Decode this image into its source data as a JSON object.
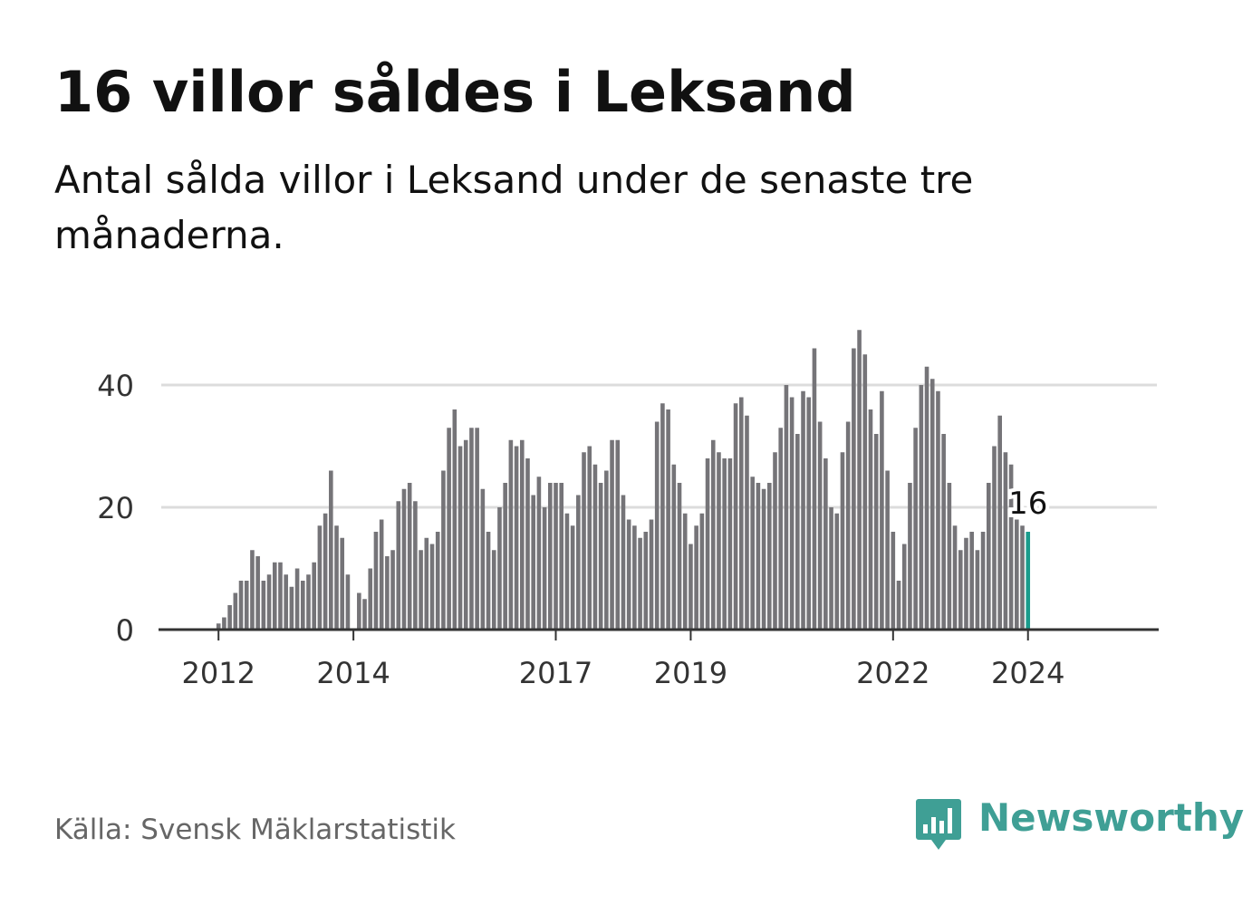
{
  "header": {
    "title": "16 villor såldes i Leksand",
    "subtitle": "Antal sålda villor i Leksand under de senaste tre månaderna."
  },
  "footer": {
    "source": "Källa: Svensk Mäklarstatistik",
    "brand": "Newsworthy",
    "brand_icon": "bar-chart-speech-bubble-icon"
  },
  "colors": {
    "bar": "#757478",
    "highlight": "#1a9b8c",
    "grid": "#dcdcdc",
    "axis": "#333333",
    "brand": "#3f9f95"
  },
  "chart_data": {
    "type": "bar",
    "title": "16 villor såldes i Leksand",
    "subtitle": "Antal sålda villor i Leksand under de senaste tre månaderna.",
    "xlabel": "",
    "ylabel": "",
    "ylim": [
      0,
      50
    ],
    "y_ticks": [
      0,
      20,
      40
    ],
    "x_tick_labels": [
      "2012",
      "2014",
      "2017",
      "2019",
      "2022",
      "2024"
    ],
    "first_period": "2011-11",
    "frequency": "monthly (rolling three-month count)",
    "highlight_label": "16",
    "values": [
      0,
      0,
      1,
      2,
      4,
      6,
      8,
      8,
      13,
      12,
      8,
      9,
      11,
      11,
      9,
      7,
      10,
      8,
      9,
      11,
      17,
      19,
      26,
      17,
      15,
      9,
      0,
      6,
      5,
      10,
      16,
      18,
      12,
      13,
      21,
      23,
      24,
      21,
      13,
      15,
      14,
      16,
      26,
      33,
      36,
      30,
      31,
      33,
      33,
      23,
      16,
      13,
      20,
      24,
      31,
      30,
      31,
      28,
      22,
      25,
      20,
      24,
      24,
      24,
      19,
      17,
      22,
      29,
      30,
      27,
      24,
      26,
      31,
      31,
      22,
      18,
      17,
      15,
      16,
      18,
      34,
      37,
      36,
      27,
      24,
      19,
      14,
      17,
      19,
      28,
      31,
      29,
      28,
      28,
      37,
      38,
      35,
      25,
      24,
      23,
      24,
      29,
      33,
      40,
      38,
      32,
      39,
      38,
      46,
      34,
      28,
      20,
      19,
      29,
      34,
      46,
      49,
      45,
      36,
      32,
      39,
      26,
      16,
      8,
      14,
      24,
      33,
      40,
      43,
      41,
      39,
      32,
      24,
      17,
      13,
      15,
      16,
      13,
      16,
      24,
      30,
      35,
      29,
      27,
      18,
      17,
      16
    ]
  }
}
